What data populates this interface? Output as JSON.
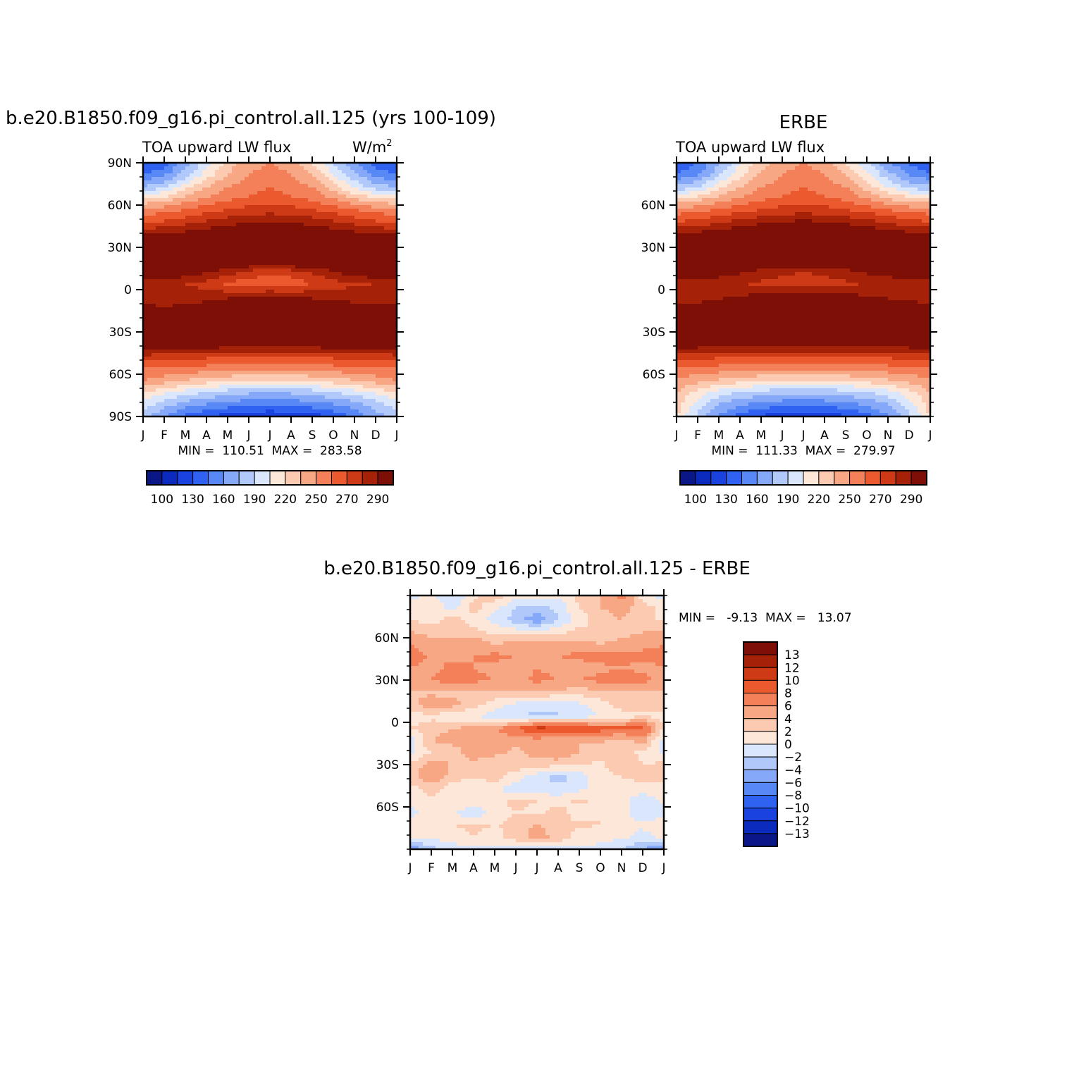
{
  "chart_data": [
    {
      "type": "heatmap",
      "title": "b.e20.B1850.f09_g16.pi_control.all.125 (yrs 100-109)",
      "subtitle": "TOA upward LW flux",
      "units": "W/m",
      "units_superscript": "2",
      "x_tick_labels": [
        "J",
        "F",
        "M",
        "A",
        "M",
        "J",
        "J",
        "A",
        "S",
        "O",
        "N",
        "D",
        "J"
      ],
      "y_tick_labels": [
        "90N",
        "60N",
        "30N",
        "0",
        "30S",
        "60S",
        "90S"
      ],
      "y_tick_values": [
        90,
        60,
        30,
        0,
        -30,
        -60,
        -90
      ],
      "ylim": [
        -90,
        90
      ],
      "stats_text": "MIN =  110.51  MAX =  283.58",
      "min": 110.51,
      "max": 283.58,
      "colorbar": {
        "orientation": "horizontal",
        "levels": [
          100,
          110,
          120,
          130,
          140,
          150,
          160,
          170,
          180,
          190,
          200,
          210,
          220,
          230,
          240,
          250,
          260,
          270,
          280,
          290,
          300
        ],
        "labels": [
          "100",
          "130",
          "160",
          "190",
          "220",
          "250",
          "270",
          "290"
        ],
        "colors": [
          "#0b1787",
          "#0a2bbd",
          "#1942de",
          "#2f62f0",
          "#5888f5",
          "#85a8f8",
          "#b1c8fa",
          "#d9e6fc",
          "#fde7d8",
          "#fbcab0",
          "#f8a785",
          "#f4805a",
          "#ea5a2e",
          "#cf3a16",
          "#a52209",
          "#7e0f06"
        ]
      },
      "z_grid": [
        [
          128,
          135,
          155,
          175,
          195,
          205,
          210,
          205,
          190,
          170,
          150,
          135,
          128
        ],
        [
          140,
          148,
          165,
          185,
          200,
          210,
          215,
          210,
          200,
          180,
          162,
          148,
          140
        ],
        [
          160,
          168,
          185,
          200,
          210,
          215,
          220,
          215,
          210,
          195,
          178,
          165,
          160
        ],
        [
          190,
          195,
          205,
          212,
          218,
          222,
          225,
          222,
          218,
          210,
          200,
          193,
          190
        ],
        [
          215,
          218,
          222,
          228,
          232,
          235,
          237,
          235,
          232,
          228,
          222,
          218,
          215
        ],
        [
          230,
          233,
          238,
          243,
          247,
          250,
          252,
          250,
          247,
          243,
          238,
          233,
          230
        ],
        [
          252,
          253,
          255,
          258,
          262,
          266,
          268,
          266,
          262,
          258,
          255,
          253,
          252
        ],
        [
          272,
          274,
          270,
          268,
          270,
          272,
          274,
          272,
          270,
          268,
          268,
          270,
          272
        ],
        [
          276,
          278,
          273,
          270,
          268,
          268,
          270,
          270,
          268,
          268,
          270,
          274,
          276
        ],
        [
          265,
          262,
          258,
          252,
          246,
          238,
          232,
          236,
          242,
          250,
          256,
          262,
          265
        ],
        [
          240,
          242,
          240,
          236,
          228,
          224,
          222,
          224,
          230,
          236,
          238,
          240,
          240
        ],
        [
          246,
          247,
          245,
          244,
          246,
          248,
          250,
          248,
          246,
          245,
          245,
          246,
          246
        ],
        [
          252,
          250,
          252,
          256,
          263,
          270,
          273,
          270,
          264,
          258,
          254,
          252,
          252
        ],
        [
          265,
          262,
          264,
          268,
          274,
          280,
          283,
          280,
          274,
          268,
          264,
          264,
          265
        ],
        [
          272,
          270,
          270,
          272,
          276,
          278,
          278,
          276,
          272,
          270,
          270,
          271,
          272
        ],
        [
          262,
          260,
          259,
          258,
          258,
          258,
          258,
          258,
          258,
          258,
          259,
          261,
          262
        ],
        [
          238,
          237,
          235,
          233,
          232,
          232,
          232,
          232,
          232,
          233,
          235,
          236,
          238
        ],
        [
          220,
          219,
          218,
          216,
          214,
          212,
          212,
          212,
          214,
          216,
          218,
          219,
          220
        ],
        [
          210,
          205,
          200,
          196,
          193,
          190,
          190,
          190,
          193,
          196,
          200,
          205,
          210
        ],
        [
          190,
          182,
          175,
          170,
          165,
          162,
          161,
          162,
          165,
          170,
          175,
          182,
          190
        ],
        [
          175,
          165,
          155,
          150,
          145,
          143,
          142,
          143,
          145,
          150,
          155,
          165,
          175
        ],
        [
          165,
          150,
          138,
          130,
          125,
          122,
          120,
          122,
          125,
          132,
          142,
          155,
          165
        ]
      ]
    },
    {
      "type": "heatmap",
      "title": "ERBE",
      "subtitle": "TOA upward LW flux",
      "x_tick_labels": [
        "J",
        "F",
        "M",
        "A",
        "M",
        "J",
        "J",
        "A",
        "S",
        "O",
        "N",
        "D",
        "J"
      ],
      "y_tick_labels": [
        "60N",
        "30N",
        "0",
        "30S",
        "60S"
      ],
      "y_tick_values": [
        60,
        30,
        0,
        -30,
        -60
      ],
      "ylim": [
        -90,
        90
      ],
      "stats_text": "MIN =  111.33  MAX =  279.97",
      "min": 111.33,
      "max": 279.97,
      "colorbar": {
        "orientation": "horizontal",
        "levels": [
          100,
          110,
          120,
          130,
          140,
          150,
          160,
          170,
          180,
          190,
          200,
          210,
          220,
          230,
          240,
          250,
          260,
          270,
          280,
          290,
          300
        ],
        "labels": [
          "100",
          "130",
          "160",
          "190",
          "220",
          "250",
          "270",
          "290"
        ],
        "colors": [
          "#0b1787",
          "#0a2bbd",
          "#1942de",
          "#2f62f0",
          "#5888f5",
          "#85a8f8",
          "#b1c8fa",
          "#d9e6fc",
          "#fde7d8",
          "#fbcab0",
          "#f8a785",
          "#f4805a",
          "#ea5a2e",
          "#cf3a16",
          "#a52209",
          "#7e0f06"
        ]
      },
      "z_grid": [
        [
          130,
          140,
          158,
          178,
          196,
          205,
          210,
          205,
          190,
          172,
          152,
          138,
          130
        ],
        [
          142,
          150,
          168,
          188,
          202,
          210,
          215,
          210,
          200,
          182,
          164,
          150,
          142
        ],
        [
          162,
          170,
          186,
          200,
          210,
          215,
          220,
          215,
          210,
          196,
          180,
          167,
          162
        ],
        [
          192,
          196,
          205,
          212,
          218,
          222,
          225,
          222,
          218,
          210,
          200,
          194,
          192
        ],
        [
          216,
          219,
          223,
          228,
          232,
          235,
          237,
          235,
          232,
          228,
          222,
          219,
          216
        ],
        [
          232,
          235,
          240,
          245,
          249,
          252,
          254,
          252,
          249,
          245,
          240,
          235,
          232
        ],
        [
          254,
          256,
          258,
          261,
          264,
          267,
          269,
          267,
          264,
          261,
          258,
          256,
          254
        ],
        [
          268,
          268,
          264,
          262,
          264,
          266,
          268,
          266,
          264,
          262,
          264,
          266,
          268
        ],
        [
          272,
          270,
          268,
          265,
          265,
          266,
          268,
          266,
          265,
          265,
          266,
          268,
          272
        ],
        [
          262,
          260,
          256,
          252,
          247,
          243,
          240,
          243,
          247,
          252,
          256,
          260,
          262
        ],
        [
          244,
          244,
          243,
          240,
          238,
          236,
          235,
          236,
          238,
          240,
          242,
          244,
          244
        ],
        [
          246,
          247,
          248,
          250,
          252,
          254,
          256,
          254,
          252,
          250,
          248,
          247,
          246
        ],
        [
          252,
          252,
          255,
          258,
          263,
          268,
          270,
          268,
          264,
          260,
          256,
          254,
          252
        ],
        [
          263,
          262,
          264,
          267,
          271,
          275,
          276,
          275,
          271,
          267,
          264,
          263,
          263
        ],
        [
          268,
          267,
          267,
          268,
          270,
          271,
          271,
          270,
          268,
          267,
          267,
          268,
          268
        ],
        [
          258,
          257,
          256,
          255,
          255,
          255,
          255,
          255,
          255,
          255,
          256,
          257,
          258
        ],
        [
          236,
          235,
          233,
          232,
          231,
          231,
          231,
          231,
          231,
          232,
          233,
          235,
          236
        ],
        [
          218,
          217,
          216,
          214,
          213,
          212,
          212,
          212,
          213,
          214,
          216,
          217,
          218
        ],
        [
          208,
          204,
          199,
          195,
          192,
          190,
          190,
          190,
          192,
          195,
          199,
          204,
          208
        ],
        [
          200,
          186,
          176,
          170,
          166,
          163,
          162,
          163,
          166,
          170,
          176,
          186,
          200
        ],
        [
          195,
          175,
          160,
          152,
          146,
          144,
          143,
          144,
          146,
          152,
          160,
          175,
          195
        ],
        [
          190,
          168,
          148,
          136,
          128,
          124,
          122,
          124,
          128,
          136,
          148,
          168,
          190
        ]
      ]
    },
    {
      "type": "heatmap",
      "title": "b.e20.B1850.f09_g16.pi_control.all.125 - ERBE",
      "x_tick_labels": [
        "J",
        "F",
        "M",
        "A",
        "M",
        "J",
        "J",
        "A",
        "S",
        "O",
        "N",
        "D",
        "J"
      ],
      "y_tick_labels": [
        "60N",
        "30N",
        "0",
        "30S",
        "60S"
      ],
      "y_tick_values": [
        60,
        30,
        0,
        -30,
        -60
      ],
      "ylim": [
        -90,
        90
      ],
      "stats_text": "MIN =   -9.13  MAX =   13.07",
      "min": -9.13,
      "max": 13.07,
      "colorbar": {
        "orientation": "vertical",
        "levels": [
          -15,
          -13,
          -12,
          -10,
          -8,
          -6,
          -4,
          -2,
          0,
          2,
          4,
          6,
          8,
          10,
          12,
          13,
          15
        ],
        "labels": [
          "13",
          "12",
          "10",
          "8",
          "6",
          "4",
          "2",
          "0",
          "-2",
          "-4",
          "-6",
          "-8",
          "-10",
          "-12",
          "-13"
        ],
        "colors": [
          "#0b1787",
          "#0a2bbd",
          "#1942de",
          "#2f62f0",
          "#5888f5",
          "#85a8f8",
          "#b1c8fa",
          "#d9e6fc",
          "#fde7d8",
          "#fbcab0",
          "#f8a785",
          "#f4805a",
          "#ea5a2e",
          "#cf3a16",
          "#a52209",
          "#7e0f06"
        ]
      },
      "z_grid": [
        [
          -1.0,
          0.5,
          -2.0,
          1.5,
          3.5,
          1.0,
          2.0,
          0.5,
          2.5,
          4.0,
          7.0,
          1.0,
          -1.0
        ],
        [
          1.0,
          2.0,
          -1.0,
          3.0,
          0.5,
          -2.0,
          -3.0,
          -1.5,
          2.0,
          4.0,
          5.0,
          3.0,
          1.0
        ],
        [
          2.0,
          1.0,
          3.0,
          1.0,
          -1.0,
          -3.0,
          -5.5,
          -2.0,
          1.0,
          3.0,
          4.0,
          2.0,
          2.0
        ],
        [
          4.0,
          3.0,
          3.5,
          2.5,
          1.5,
          1.0,
          0.5,
          1.5,
          2.5,
          2.0,
          3.0,
          4.0,
          4.0
        ],
        [
          6.0,
          5.0,
          4.5,
          5.5,
          4.0,
          4.5,
          5.0,
          5.0,
          4.5,
          4.0,
          5.0,
          5.5,
          6.0
        ],
        [
          6.5,
          6.0,
          5.5,
          6.0,
          6.5,
          6.0,
          5.5,
          6.0,
          6.5,
          7.0,
          6.5,
          6.5,
          6.5
        ],
        [
          6.0,
          5.5,
          6.5,
          6.0,
          5.5,
          5.0,
          6.0,
          5.5,
          5.0,
          5.5,
          6.0,
          5.5,
          6.0
        ],
        [
          5.5,
          6.0,
          7.0,
          6.5,
          6.0,
          5.5,
          6.5,
          6.0,
          6.0,
          6.5,
          7.5,
          6.5,
          5.5
        ],
        [
          4.0,
          3.5,
          3.0,
          4.0,
          3.5,
          4.0,
          4.0,
          3.5,
          3.0,
          3.5,
          4.0,
          4.0,
          4.0
        ],
        [
          3.0,
          5.5,
          5.0,
          3.0,
          1.0,
          -0.5,
          -1.5,
          -2.0,
          -0.5,
          1.0,
          3.0,
          2.0,
          3.0
        ],
        [
          1.0,
          1.5,
          0.5,
          0.0,
          -1.0,
          -2.0,
          -2.5,
          -2.0,
          -1.0,
          0.0,
          1.0,
          2.0,
          1.0
        ],
        [
          2.0,
          3.0,
          4.0,
          4.5,
          5.5,
          8.0,
          11.0,
          10.5,
          10.0,
          9.0,
          8.5,
          9.0,
          2.0
        ],
        [
          -1.0,
          4.0,
          5.0,
          5.5,
          6.0,
          4.5,
          5.0,
          4.5,
          4.0,
          4.5,
          3.0,
          5.0,
          -1.0
        ],
        [
          -0.5,
          2.0,
          2.5,
          5.5,
          4.5,
          3.5,
          5.0,
          6.0,
          4.0,
          3.0,
          2.5,
          1.5,
          -0.5
        ],
        [
          2.5,
          5.0,
          4.0,
          3.0,
          2.5,
          3.0,
          3.0,
          2.5,
          2.0,
          1.5,
          4.0,
          2.0,
          2.5
        ],
        [
          3.0,
          6.0,
          3.0,
          2.0,
          3.0,
          1.0,
          -1.0,
          -3.0,
          -1.0,
          1.0,
          2.0,
          3.0,
          3.0
        ],
        [
          1.0,
          3.0,
          0.5,
          1.0,
          0.5,
          -1.5,
          -1.0,
          -1.5,
          -0.5,
          0.5,
          1.0,
          0.5,
          1.0
        ],
        [
          0.5,
          1.5,
          2.0,
          1.0,
          1.5,
          2.5,
          2.0,
          1.0,
          2.5,
          1.5,
          0.5,
          -1.0,
          0.5
        ],
        [
          -1.0,
          1.0,
          0.5,
          -2.0,
          1.0,
          2.0,
          1.5,
          3.0,
          1.0,
          2.0,
          1.0,
          -2.0,
          -1.0
        ],
        [
          2.0,
          1.0,
          2.0,
          2.5,
          2.0,
          2.5,
          4.5,
          2.0,
          2.5,
          2.0,
          1.0,
          0.5,
          2.0
        ],
        [
          0.5,
          0.5,
          1.0,
          2.0,
          1.0,
          3.0,
          5.0,
          3.5,
          1.0,
          0.5,
          0.5,
          -1.0,
          0.5
        ],
        [
          -6.0,
          -3.0,
          -1.0,
          -0.5,
          -0.5,
          -1.0,
          -1.5,
          -1.0,
          -0.5,
          -0.5,
          -2.0,
          -4.0,
          -6.0
        ]
      ]
    }
  ]
}
